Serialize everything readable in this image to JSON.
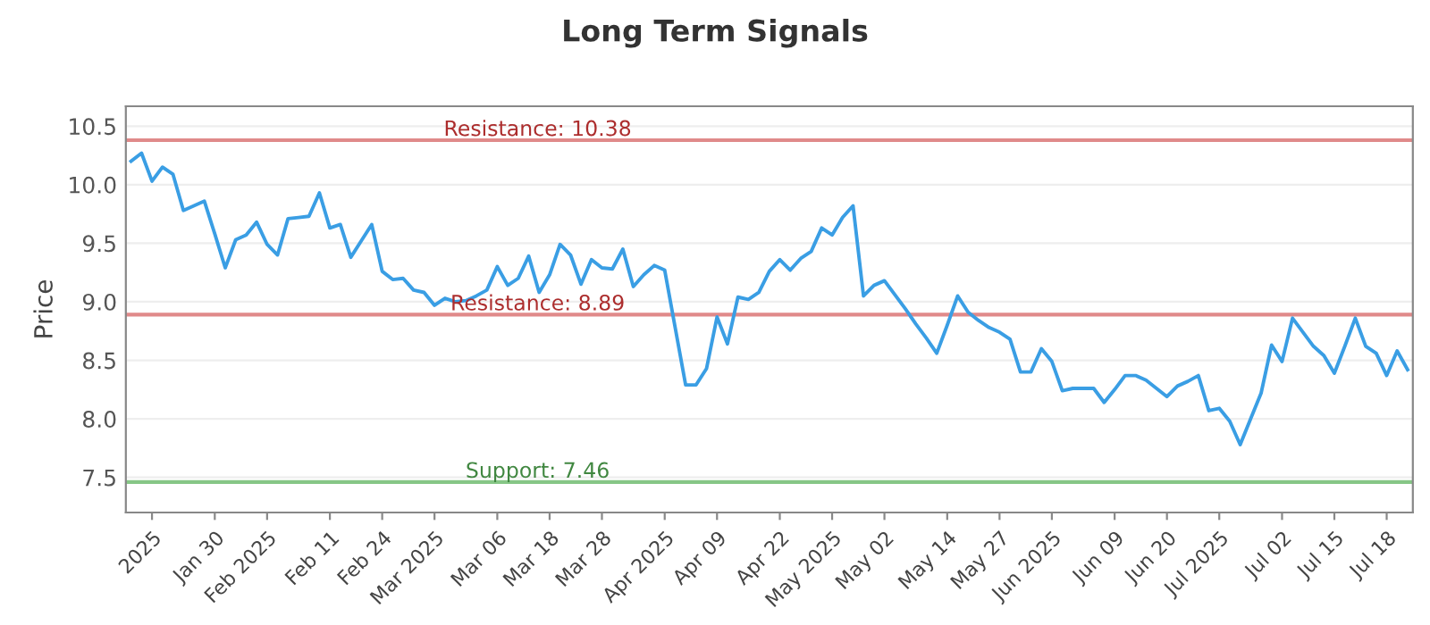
{
  "chart_data": {
    "type": "line",
    "title": "Long Term Signals",
    "ylabel": "Price",
    "categories": [
      null,
      null,
      "2025",
      null,
      null,
      null,
      null,
      null,
      "Jan 30",
      null,
      null,
      null,
      null,
      "Feb 2025",
      null,
      null,
      null,
      null,
      null,
      "Feb 11",
      null,
      null,
      null,
      null,
      "Feb 24",
      null,
      null,
      null,
      null,
      "Mar 2025",
      null,
      null,
      null,
      null,
      null,
      "Mar 06",
      null,
      null,
      null,
      null,
      "Mar 18",
      null,
      null,
      null,
      null,
      "Mar 28",
      null,
      null,
      null,
      null,
      null,
      "Apr 2025",
      null,
      null,
      null,
      null,
      "Apr 09",
      null,
      null,
      null,
      null,
      null,
      "Apr 22",
      null,
      null,
      null,
      null,
      "May 2025",
      null,
      null,
      null,
      null,
      "May 02",
      null,
      null,
      null,
      null,
      null,
      "May 14",
      null,
      null,
      null,
      null,
      "May 27",
      null,
      null,
      null,
      null,
      "Jun 2025",
      null,
      null,
      null,
      null,
      null,
      "Jun 09",
      null,
      null,
      null,
      null,
      "Jun 20",
      null,
      null,
      null,
      null,
      "Jul 2025",
      null,
      null,
      null,
      null,
      null,
      "Jul 02",
      null,
      null,
      null,
      null,
      "Jul 15",
      null,
      null,
      null,
      null,
      "Jul 18",
      null,
      null
    ],
    "series": [
      {
        "color": "#3a9ee4",
        "values": [
          10.2,
          10.27,
          10.03,
          10.15,
          10.09,
          9.78,
          9.82,
          9.86,
          9.58,
          9.29,
          9.53,
          9.57,
          9.68,
          9.49,
          9.4,
          9.71,
          9.72,
          9.73,
          9.93,
          9.63,
          9.66,
          9.38,
          9.52,
          9.66,
          9.26,
          9.19,
          9.2,
          9.1,
          9.08,
          8.97,
          9.03,
          9.0,
          9.01,
          9.05,
          9.1,
          9.3,
          9.14,
          9.2,
          9.39,
          9.08,
          9.23,
          9.49,
          9.4,
          9.15,
          9.36,
          9.29,
          9.28,
          9.45,
          9.13,
          9.23,
          9.31,
          9.27,
          8.78,
          8.29,
          8.29,
          8.43,
          8.87,
          8.64,
          9.04,
          9.02,
          9.08,
          9.26,
          9.36,
          9.27,
          9.37,
          9.43,
          9.63,
          9.57,
          9.72,
          9.82,
          9.05,
          9.14,
          9.18,
          9.06,
          8.94,
          8.81,
          8.69,
          8.56,
          8.8,
          9.05,
          8.91,
          8.84,
          8.78,
          8.74,
          8.68,
          8.4,
          8.4,
          8.6,
          8.49,
          8.24,
          8.26,
          8.26,
          8.26,
          8.14,
          8.25,
          8.37,
          8.37,
          8.33,
          8.26,
          8.19,
          8.28,
          8.32,
          8.37,
          8.07,
          8.09,
          7.98,
          7.78,
          8.0,
          8.22,
          8.63,
          8.49,
          8.86,
          8.74,
          8.62,
          8.54,
          8.39,
          8.62,
          8.86,
          8.62,
          8.56,
          8.37,
          8.58,
          8.42
        ]
      }
    ],
    "ylim": [
      7.2,
      10.67
    ],
    "yticks": [
      7.5,
      {
        "value": 8,
        "label": "8.0"
      },
      8.5,
      {
        "value": 9,
        "label": "9.0"
      },
      9.5,
      {
        "value": 10,
        "label": "10.0"
      },
      10.5
    ],
    "ref_lines": [
      {
        "axis": "y",
        "value": 10.38,
        "label": "Resistance: 10.38",
        "color": "#e08a8a"
      },
      {
        "axis": "y",
        "value": 8.89,
        "label": "Resistance: 8.89",
        "color": "#e08a8a"
      },
      {
        "axis": "y",
        "value": 7.46,
        "label": "Support: 7.46",
        "color": "#86c686"
      }
    ],
    "grid": "y",
    "marker": "none",
    "line_style": "solid",
    "legend": false
  }
}
